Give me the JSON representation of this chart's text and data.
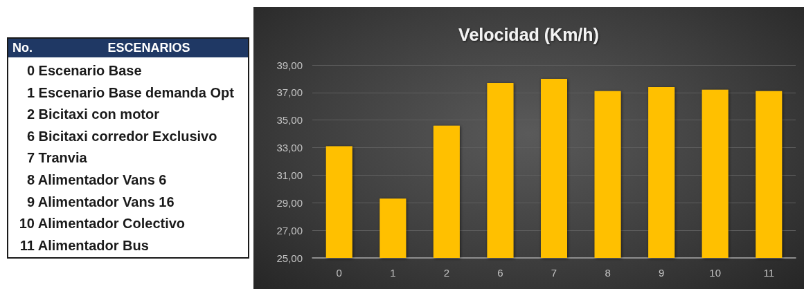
{
  "chart_data": [
    {
      "type": "other",
      "annotations": [
        "No.",
        "ESCENARIOS",
        "0 Escenario Base",
        "1 Escenario Base demanda Opt",
        "2 Bicitaxi con motor",
        "6 Bicitaxi corredor Exclusivo",
        "7 Tranvia",
        "8 Alimentador Vans 6",
        "9 Alimentador Vans 16",
        "10 Alimentador Colectivo",
        "11 Alimentador Bus"
      ]
    },
    {
      "type": "bar",
      "title": "Velocidad (Km/h)",
      "categories": [
        "0",
        "1",
        "2",
        "6",
        "7",
        "8",
        "9",
        "10",
        "11"
      ],
      "values": [
        33.1,
        29.3,
        34.6,
        37.7,
        38.0,
        37.1,
        37.4,
        37.2,
        37.1
      ],
      "color": "#ffc000",
      "ylim": [
        25,
        39
      ],
      "yticks": [
        {
          "value": 25,
          "label": "25,00"
        },
        {
          "value": 27,
          "label": "27,00"
        },
        {
          "value": 29,
          "label": "29,00"
        },
        {
          "value": 31,
          "label": "31,00"
        },
        {
          "value": 33,
          "label": "33,00"
        },
        {
          "value": 35,
          "label": "35,00"
        },
        {
          "value": 37,
          "label": "37,00"
        },
        {
          "value": 39,
          "label": "39,00"
        }
      ],
      "grid": "y"
    }
  ]
}
